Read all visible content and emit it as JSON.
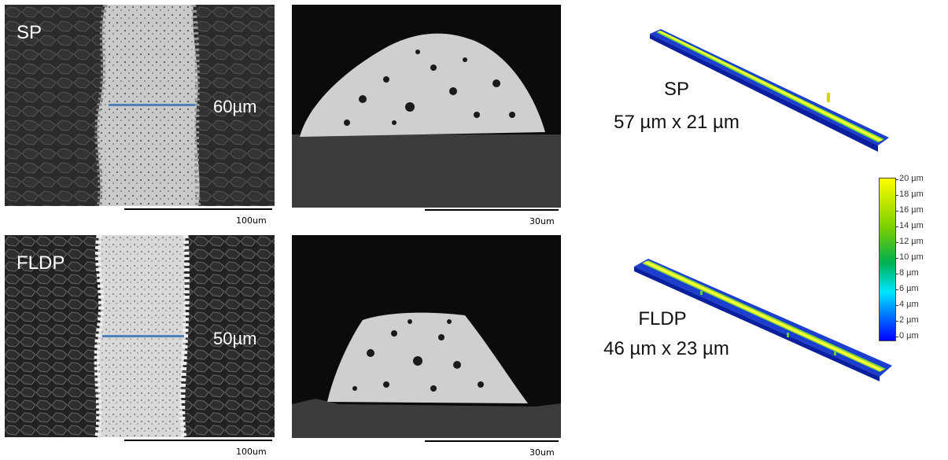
{
  "rows": [
    {
      "sample_label": "SP",
      "line_width": "60µm",
      "sem_scalebar": "100um",
      "cross_section_scalebar": "30um",
      "profile_label": "SP",
      "profile_dims": "57 µm x 21 µm"
    },
    {
      "sample_label": "FLDP",
      "line_width": "50µm",
      "sem_scalebar": "100um",
      "cross_section_scalebar": "30um",
      "profile_label": "FLDP",
      "profile_dims": "46 µm x 23 µm"
    }
  ],
  "colorbar": {
    "ticks": [
      "20 µm",
      "18 µm",
      "16 µm",
      "14 µm",
      "12 µm",
      "10 µm",
      "8 µm",
      "6 µm",
      "4 µm",
      "2 µm",
      "0 µm"
    ],
    "colors": [
      "#0000ff",
      "#00e5ff",
      "#00b050",
      "#7ccf00",
      "#ffff00"
    ]
  },
  "measure_line_color": "#4f81bd"
}
